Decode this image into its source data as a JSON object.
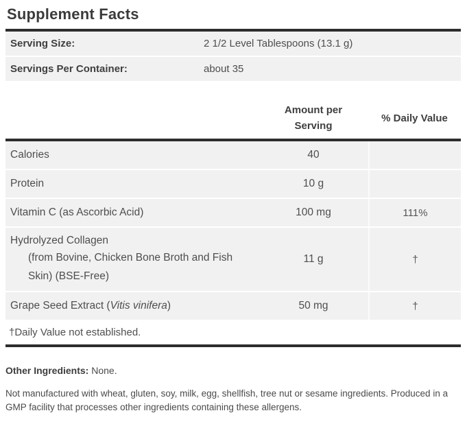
{
  "title": "Supplement Facts",
  "serving_info": {
    "rows": [
      {
        "label": "Serving Size:",
        "value": "2 1/2 Level Tablespoons (13.1 g)"
      },
      {
        "label": "Servings Per Container:",
        "value": "about 35"
      }
    ]
  },
  "table": {
    "amount_header": "Amount per Serving",
    "dv_header": "% Daily Value",
    "rows": [
      {
        "name": "Calories",
        "amount": "40",
        "dv": ""
      },
      {
        "name": "Protein",
        "amount": "10 g",
        "dv": ""
      },
      {
        "name": "Vitamin C (as Ascorbic Acid)",
        "amount": "100 mg",
        "dv": "111%"
      },
      {
        "name": "Hydrolyzed Collagen",
        "detail": "(from Bovine, Chicken Bone Broth and Fish Skin) (BSE-Free)",
        "amount": "11 g",
        "dv": "†"
      },
      {
        "name_pre": "Grape Seed Extract (",
        "name_italic": "Vitis vinifera",
        "name_post": ")",
        "amount": "50 mg",
        "dv": "†"
      }
    ],
    "footnote": "†Daily Value not established."
  },
  "other_ingredients": {
    "label": "Other Ingredients:",
    "value": "None."
  },
  "allergen_statement": "Not manufactured with wheat, gluten, soy, milk, egg, shellfish, tree nut or sesame ingredients. Produced in a GMP facility that processes other ingredients containing these allergens.",
  "colors": {
    "bar": "#2d2d2d",
    "row_bg": "#f1f1f1",
    "text": "#4e4e4e"
  }
}
